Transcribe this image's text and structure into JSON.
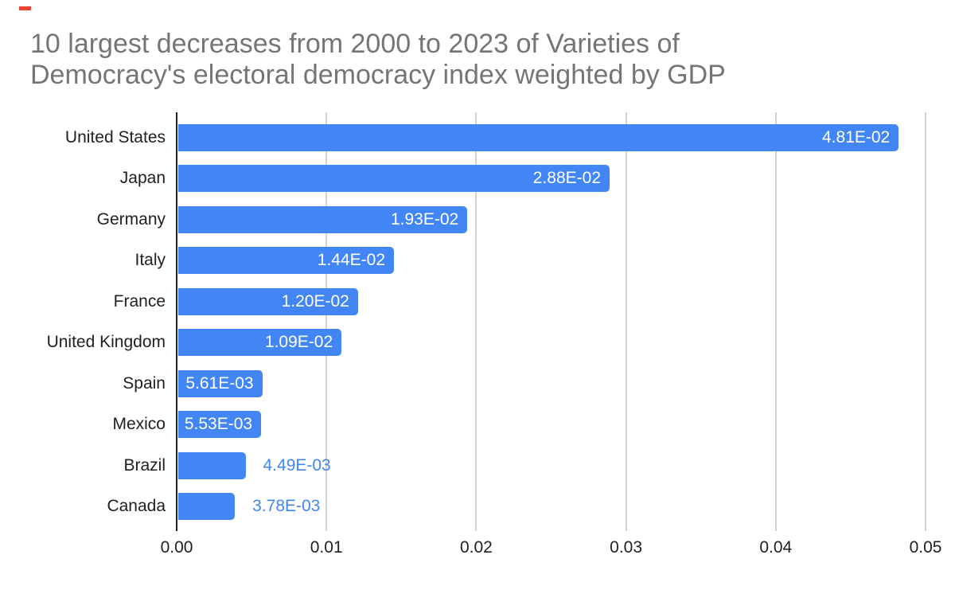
{
  "page": {
    "background": "#ffffff",
    "red_mark_color": "#ea4335"
  },
  "title": {
    "lines": [
      "10 largest decreases from 2000 to 2023 of Varieties of",
      "Democracy's electoral democracy index weighted by GDP"
    ],
    "color": "#757575"
  },
  "chart_data": {
    "type": "bar",
    "orientation": "horizontal",
    "title": "10 largest decreases from 2000 to 2023 of Varieties of Democracy's electoral democracy index weighted by GDP",
    "categories": [
      "United States",
      "Japan",
      "Germany",
      "Italy",
      "France",
      "United Kingdom",
      "Spain",
      "Mexico",
      "Brazil",
      "Canada"
    ],
    "values": [
      0.0481,
      0.0288,
      0.0193,
      0.0144,
      0.012,
      0.0109,
      0.00561,
      0.00553,
      0.00449,
      0.00378
    ],
    "value_labels": [
      "4.81E-02",
      "2.88E-02",
      "1.93E-02",
      "1.44E-02",
      "1.20E-02",
      "1.09E-02",
      "5.61E-03",
      "5.53E-03",
      "4.49E-03",
      "3.78E-03"
    ],
    "label_placement": [
      "inside",
      "inside",
      "inside",
      "inside",
      "inside",
      "inside",
      "inside",
      "inside",
      "outside",
      "outside"
    ],
    "xlim": [
      0,
      0.05
    ],
    "x_ticks": [
      "0.00",
      "0.01",
      "0.02",
      "0.03",
      "0.04",
      "0.05"
    ],
    "grid": true,
    "legend": "none",
    "xlabel": "",
    "ylabel": "",
    "colors": {
      "bar": "#4285f4",
      "value_label_inside": "#ffffff",
      "value_label_outside": "#4285f4",
      "gridline": "#d2d2d2",
      "axis_line": "#212121",
      "axis_labels": "#1f1f1f"
    }
  }
}
